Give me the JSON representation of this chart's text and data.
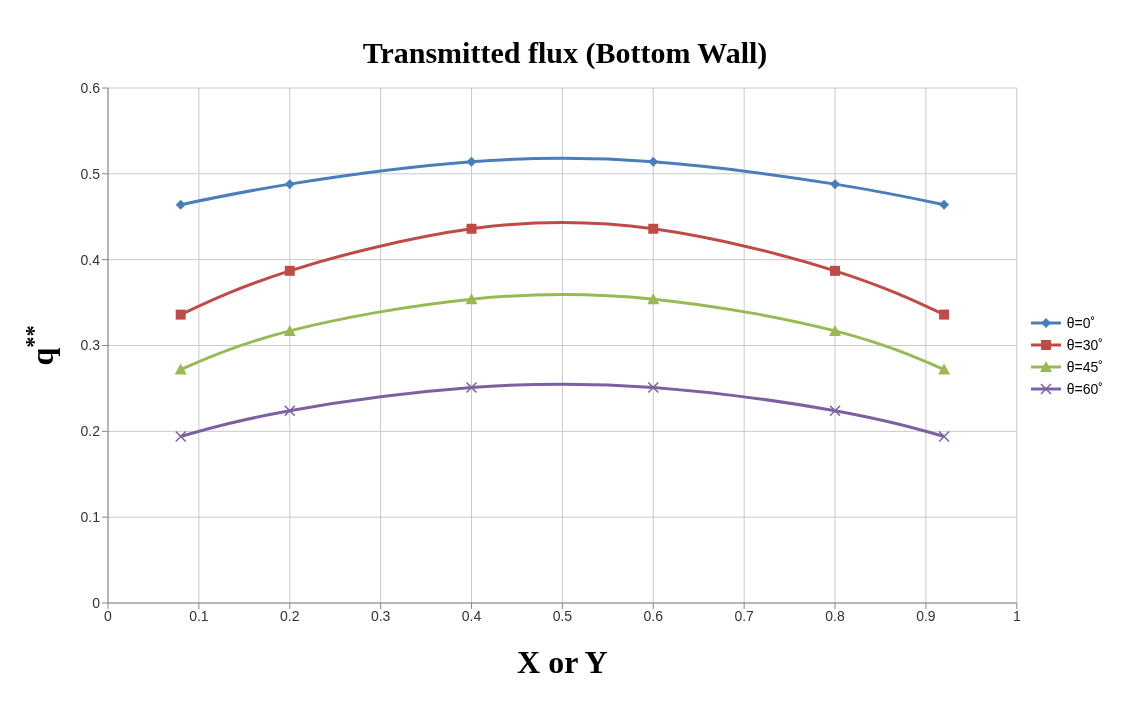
{
  "chart_data": {
    "type": "line",
    "title": "Transmitted flux (Bottom Wall)",
    "xlabel": "X or Y",
    "ylabel": "q$^{**}$",
    "x": [
      0.08,
      0.2,
      0.4,
      0.6,
      0.8,
      0.92
    ],
    "series": [
      {
        "name": "θ=0˚",
        "color": "#4a7ebb",
        "marker": "diamond",
        "values": [
          0.464,
          0.488,
          0.514,
          0.514,
          0.488,
          0.464
        ]
      },
      {
        "name": "θ=30˚",
        "color": "#be4b48",
        "marker": "square",
        "values": [
          0.336,
          0.387,
          0.436,
          0.436,
          0.387,
          0.336
        ]
      },
      {
        "name": "θ=45˚",
        "color": "#98b954",
        "marker": "triangle",
        "values": [
          0.272,
          0.317,
          0.354,
          0.354,
          0.317,
          0.272
        ]
      },
      {
        "name": "θ=60˚",
        "color": "#7d60a0",
        "marker": "cross",
        "values": [
          0.194,
          0.224,
          0.251,
          0.251,
          0.224,
          0.194
        ]
      }
    ],
    "xlim": [
      0,
      1
    ],
    "xticks": [
      0,
      0.1,
      0.2,
      0.3,
      0.4,
      0.5,
      0.6,
      0.7,
      0.8,
      0.9,
      1
    ],
    "ylim": [
      0,
      0.6
    ],
    "yticks": [
      0,
      0.1,
      0.2,
      0.3,
      0.4,
      0.5,
      0.6
    ],
    "grid": true,
    "legend": "right",
    "line_style": "solid"
  }
}
